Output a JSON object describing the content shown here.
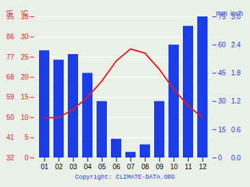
{
  "chart_data": {
    "type": "bar",
    "categories": [
      "01",
      "02",
      "03",
      "04",
      "05",
      "06",
      "07",
      "08",
      "09",
      "10",
      "11",
      "12"
    ],
    "series": [
      {
        "type": "bar",
        "axis": "y2",
        "color": "#1a3de8",
        "values": [
          57,
          52,
          55,
          45,
          30,
          10,
          3,
          7,
          30,
          60,
          70,
          75
        ]
      },
      {
        "type": "line",
        "color": "#e81a1a",
        "values": [
          10,
          10,
          12,
          15,
          19,
          24,
          27,
          26,
          22,
          17,
          13,
          10
        ]
      }
    ],
    "ylabel": "°C",
    "ylim": [
      0,
      35
    ],
    "yticks": [
      0,
      5,
      10,
      15,
      20,
      25,
      30,
      35
    ],
    "y_alt": {
      "label": "°F",
      "ticks": [
        {
          "value": 0,
          "label": "32"
        },
        {
          "value": 5,
          "label": "41"
        },
        {
          "value": 10,
          "label": "50"
        },
        {
          "value": 15,
          "label": "59"
        },
        {
          "value": 20,
          "label": "68"
        },
        {
          "value": 25,
          "label": "77"
        },
        {
          "value": 30,
          "label": "86"
        },
        {
          "value": 35,
          "label": "95"
        }
      ]
    },
    "y2label": "mm",
    "y2lim": [
      0,
      75
    ],
    "y2ticks": [
      0,
      15,
      30,
      45,
      60,
      75
    ],
    "y2_alt": {
      "label": "inch",
      "ticks": [
        {
          "value": 0,
          "label": "0.0"
        },
        {
          "value": 15,
          "label": "0.6"
        },
        {
          "value": 30,
          "label": "1.2"
        },
        {
          "value": 45,
          "label": "1.8"
        },
        {
          "value": 60,
          "label": "2.4"
        },
        {
          "value": 75,
          "label": "3.0"
        }
      ]
    },
    "caption": "Copyright: CLIMATE-DATA.ORG",
    "background": "#eaf0e8",
    "grid": true
  }
}
